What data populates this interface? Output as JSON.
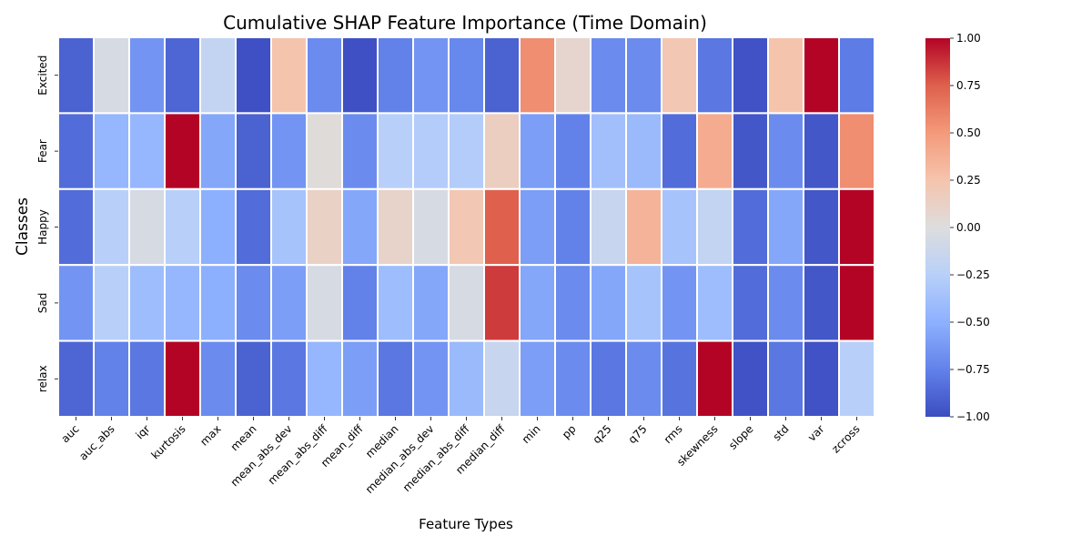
{
  "chart_data": {
    "type": "heatmap",
    "title": "Cumulative SHAP Feature Importance (Time Domain)",
    "xlabel": "Feature Types",
    "ylabel": "Classes",
    "x_categories": [
      "auc",
      "auc_abs",
      "iqr",
      "kurtosis",
      "max",
      "mean",
      "mean_abs_dev",
      "mean_abs_diff",
      "mean_diff",
      "median",
      "median_abs_dev",
      "median_abs_diff",
      "median_diff",
      "min",
      "pp",
      "q25",
      "q75",
      "rms",
      "skewness",
      "slope",
      "std",
      "var",
      "zcross"
    ],
    "y_categories": [
      "Excited",
      "Fear",
      "Happy",
      "Sad",
      "relax"
    ],
    "values": [
      [
        -0.9,
        -0.05,
        -0.65,
        -0.88,
        -0.18,
        -0.98,
        0.25,
        -0.7,
        -0.98,
        -0.75,
        -0.65,
        -0.72,
        -0.9,
        0.55,
        0.08,
        -0.7,
        -0.7,
        0.22,
        -0.8,
        -0.97,
        0.25,
        1.0,
        -0.78
      ],
      [
        -0.85,
        -0.45,
        -0.45,
        1.0,
        -0.55,
        -0.9,
        -0.65,
        0.02,
        -0.7,
        -0.25,
        -0.28,
        -0.28,
        0.15,
        -0.6,
        -0.75,
        -0.38,
        -0.42,
        -0.85,
        0.4,
        -0.95,
        -0.7,
        -0.95,
        0.55
      ],
      [
        -0.85,
        -0.25,
        -0.05,
        -0.25,
        -0.5,
        -0.85,
        -0.35,
        0.12,
        -0.55,
        0.1,
        -0.05,
        0.22,
        0.75,
        -0.6,
        -0.75,
        -0.15,
        0.35,
        -0.35,
        -0.18,
        -0.85,
        -0.55,
        -0.95,
        1.0
      ],
      [
        -0.65,
        -0.25,
        -0.4,
        -0.45,
        -0.5,
        -0.7,
        -0.6,
        -0.05,
        -0.75,
        -0.4,
        -0.55,
        -0.05,
        0.85,
        -0.55,
        -0.7,
        -0.55,
        -0.35,
        -0.65,
        -0.4,
        -0.85,
        -0.7,
        -0.95,
        1.0
      ],
      [
        -0.88,
        -0.75,
        -0.8,
        1.0,
        -0.7,
        -0.9,
        -0.8,
        -0.45,
        -0.6,
        -0.8,
        -0.65,
        -0.42,
        -0.15,
        -0.6,
        -0.7,
        -0.8,
        -0.7,
        -0.82,
        1.0,
        -0.97,
        -0.8,
        -0.97,
        -0.25
      ]
    ],
    "vmin": -1,
    "vmax": 1,
    "colormap": "coolwarm",
    "colorbar_ticks": [
      "1.00",
      "0.75",
      "0.50",
      "0.25",
      "0.00",
      "−0.25",
      "−0.50",
      "−0.75",
      "−1.00"
    ],
    "colorbar_tick_values": [
      1,
      0.75,
      0.5,
      0.25,
      0,
      -0.25,
      -0.5,
      -0.75,
      -1
    ],
    "cell_border_color": "#ffffff"
  }
}
